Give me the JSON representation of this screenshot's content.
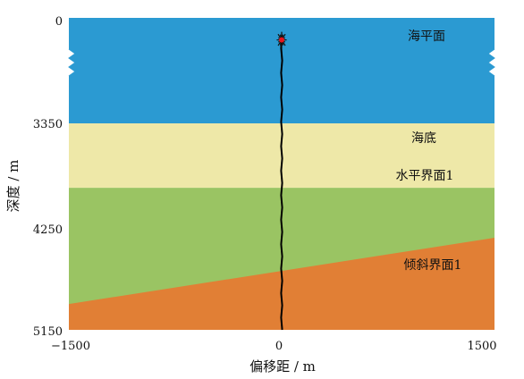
{
  "figure": {
    "x_axis": {
      "title": "偏移距 / m",
      "range": [
        -1500,
        1500
      ],
      "ticks": [
        {
          "value": -1500,
          "label": "−1500"
        },
        {
          "value": 0,
          "label": "0"
        },
        {
          "value": 1500,
          "label": "1500"
        }
      ]
    },
    "y_axis": {
      "title": "深度 / m",
      "range": [
        0,
        5150
      ],
      "ticks": [
        {
          "value": 0,
          "label": "0"
        },
        {
          "value": 3350,
          "label": "3350"
        },
        {
          "value": 4250,
          "label": "4250"
        },
        {
          "value": 5150,
          "label": "5150"
        }
      ]
    },
    "layers": [
      {
        "name": "sea",
        "label": "海平面",
        "color": "#2b9ad2"
      },
      {
        "name": "seabed",
        "label": "海底",
        "color": "#eee8a8"
      },
      {
        "name": "horizontal-layer",
        "label": "水平界面1",
        "color": "#9ac463"
      },
      {
        "name": "inclined-layer",
        "label": "倾斜界面1",
        "color": "#e17f35"
      }
    ],
    "interfaces": {
      "seabed_top": {
        "offsets": [
          -1500,
          1500
        ],
        "depths": [
          3350,
          3350
        ]
      },
      "horizontal_1": {
        "offsets": [
          -1500,
          1500
        ],
        "depths": [
          3900,
          3900
        ]
      },
      "inclined_1": {
        "offsets": [
          -1500,
          1500
        ],
        "depths": [
          4920,
          4330
        ]
      }
    },
    "source": {
      "offset": 0,
      "depth": 700,
      "color": "#e8141c"
    },
    "well": {
      "offset": 0,
      "depth_top": 580,
      "depth_bottom": 5150,
      "color": "#000000"
    },
    "axis_break_icon": "wavy-break-marks"
  }
}
